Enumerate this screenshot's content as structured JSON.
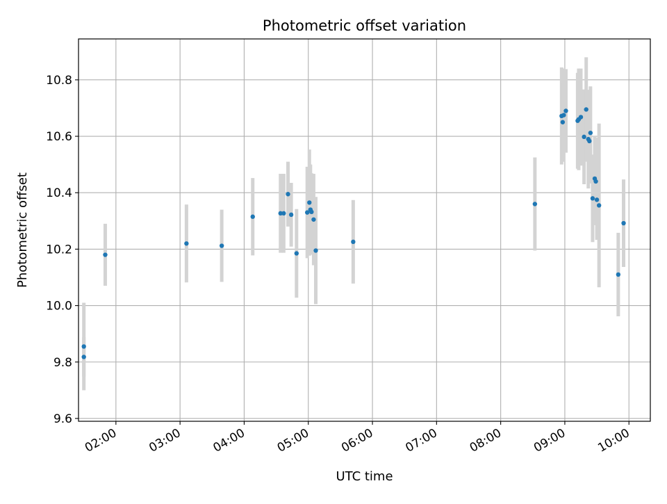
{
  "chart_data": {
    "type": "scatter",
    "title": "Photometric offset variation",
    "xlabel": "UTC time",
    "ylabel": "Photometric offset",
    "x_tick_labels": [
      "02:00",
      "03:00",
      "04:00",
      "05:00",
      "06:00",
      "07:00",
      "08:00",
      "09:00",
      "10:00"
    ],
    "y_tick_values": [
      9.6,
      9.8,
      10.0,
      10.2,
      10.4,
      10.6,
      10.8
    ],
    "y_tick_labels": [
      "9.6",
      "9.8",
      "10.0",
      "10.2",
      "10.4",
      "10.6",
      "10.8"
    ],
    "xlim": [
      "01:25",
      "10:20"
    ],
    "ylim": [
      9.59,
      10.945
    ],
    "grid": true,
    "colors": {
      "marker": "#1f77b4",
      "errorbar": "#d3d3d3",
      "grid": "#b0b0b0"
    },
    "points": [
      {
        "x": "01:30",
        "y": 9.855,
        "err": 0.155
      },
      {
        "x": "01:30",
        "y": 9.818,
        "err": 0.07
      },
      {
        "x": "01:50",
        "y": 10.18,
        "err": 0.11
      },
      {
        "x": "03:06",
        "y": 10.22,
        "err": 0.138
      },
      {
        "x": "03:39",
        "y": 10.212,
        "err": 0.128
      },
      {
        "x": "04:08",
        "y": 10.315,
        "err": 0.137
      },
      {
        "x": "04:34",
        "y": 10.327,
        "err": 0.14
      },
      {
        "x": "04:37",
        "y": 10.327,
        "err": 0.14
      },
      {
        "x": "04:41",
        "y": 10.395,
        "err": 0.115
      },
      {
        "x": "04:44",
        "y": 10.322,
        "err": 0.113
      },
      {
        "x": "04:49",
        "y": 10.185,
        "err": 0.157
      },
      {
        "x": "04:59",
        "y": 10.33,
        "err": 0.162
      },
      {
        "x": "05:01",
        "y": 10.365,
        "err": 0.188
      },
      {
        "x": "05:02",
        "y": 10.34,
        "err": 0.16
      },
      {
        "x": "05:03",
        "y": 10.332,
        "err": 0.137
      },
      {
        "x": "05:05",
        "y": 10.305,
        "err": 0.162
      },
      {
        "x": "05:07",
        "y": 10.195,
        "err": 0.19
      },
      {
        "x": "05:42",
        "y": 10.226,
        "err": 0.148
      },
      {
        "x": "08:32",
        "y": 10.36,
        "err": 0.165
      },
      {
        "x": "08:57",
        "y": 10.672,
        "err": 0.172
      },
      {
        "x": "08:58",
        "y": 10.65,
        "err": 0.14
      },
      {
        "x": "08:59",
        "y": 10.675,
        "err": 0.165
      },
      {
        "x": "09:01",
        "y": 10.69,
        "err": 0.148
      },
      {
        "x": "09:12",
        "y": 10.655,
        "err": 0.17
      },
      {
        "x": "09:13",
        "y": 10.66,
        "err": 0.18
      },
      {
        "x": "09:15",
        "y": 10.668,
        "err": 0.172
      },
      {
        "x": "09:18",
        "y": 10.598,
        "err": 0.168
      },
      {
        "x": "09:20",
        "y": 10.695,
        "err": 0.185
      },
      {
        "x": "09:22",
        "y": 10.59,
        "err": 0.175
      },
      {
        "x": "09:23",
        "y": 10.583,
        "err": 0.15
      },
      {
        "x": "09:24",
        "y": 10.612,
        "err": 0.165
      },
      {
        "x": "09:26",
        "y": 10.38,
        "err": 0.155
      },
      {
        "x": "09:28",
        "y": 10.45,
        "err": 0.15
      },
      {
        "x": "09:29",
        "y": 10.44,
        "err": 0.155
      },
      {
        "x": "09:30",
        "y": 10.375,
        "err": 0.142
      },
      {
        "x": "09:32",
        "y": 10.355,
        "err": 0.29
      },
      {
        "x": "09:50",
        "y": 10.11,
        "err": 0.148
      },
      {
        "x": "09:55",
        "y": 10.292,
        "err": 0.155
      }
    ]
  }
}
